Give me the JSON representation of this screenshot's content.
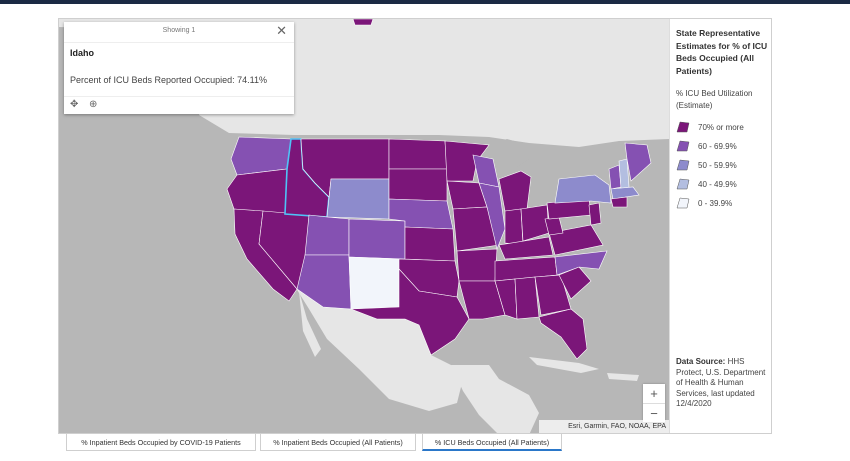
{
  "popup": {
    "count_text": "Showing 1",
    "close_glyph": "✕",
    "state_name": "Idaho",
    "field_label": "Percent of ICU Beds Reported Occupied:",
    "field_value": "74.11%",
    "tools": [
      {
        "name": "move-icon",
        "glyph": "✥"
      },
      {
        "name": "zoom-to-icon",
        "glyph": "⊕"
      }
    ]
  },
  "legend": {
    "title": "State Representative Estimates for % of ICU Beds Occupied (All Patients)",
    "subtitle": "% ICU Bed Utilization (Estimate)",
    "classes": [
      {
        "label": "70% or more",
        "color": "#7b1679"
      },
      {
        "label": "60 - 69.9%",
        "color": "#8551b2"
      },
      {
        "label": "50 - 59.9%",
        "color": "#8d8bcc"
      },
      {
        "label": "40 - 49.9%",
        "color": "#b3bee0"
      },
      {
        "label": "0 - 39.9%",
        "color": "#f2f5fb"
      }
    ],
    "source_label": "Data Source:",
    "source_text": "HHS Protect, U.S. Department of Health & Human Services, last updated 12/4/2020"
  },
  "map": {
    "selected_state": "Idaho",
    "selection_color": "#4fc3f7",
    "land_color": "#e6e6e6",
    "water_color": "#b7b7b7"
  },
  "zoom": {
    "in": "+",
    "out": "−"
  },
  "attribution": "Esri, Garmin, FAO, NOAA, EPA",
  "tabs": [
    {
      "label": "% Inpatient Beds Occupied by COVID-19 Patients",
      "active": false
    },
    {
      "label": "% Inpatient Beds Occupied (All Patients)",
      "active": false
    },
    {
      "label": "% ICU Beds Occupied (All Patients)",
      "active": true
    }
  ]
}
